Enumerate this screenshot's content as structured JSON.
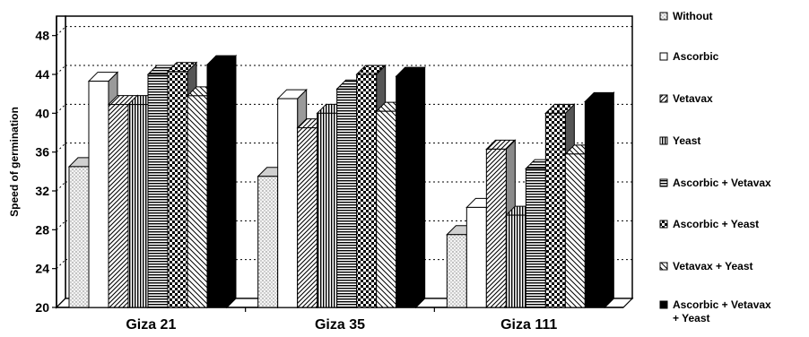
{
  "chart_data": {
    "type": "bar",
    "title": "",
    "xlabel": "",
    "ylabel": "Speed of germination",
    "ylim": [
      20,
      50
    ],
    "yticks": [
      20,
      24,
      28,
      32,
      36,
      40,
      44,
      48
    ],
    "grid": "horizontal dotted",
    "legend_position": "right",
    "categories": [
      "Giza 21",
      "Giza 35",
      "Giza 111"
    ],
    "series": [
      {
        "name": "Without",
        "pattern": "dots",
        "values": [
          34.5,
          33.5,
          27.5
        ]
      },
      {
        "name": "Ascorbic",
        "pattern": "white",
        "values": [
          43.3,
          41.5,
          30.3
        ]
      },
      {
        "name": "Vetavax",
        "pattern": "diagonal",
        "values": [
          40.9,
          38.5,
          36.3
        ]
      },
      {
        "name": "Yeast",
        "pattern": "vertical",
        "values": [
          40.9,
          40.0,
          29.5
        ]
      },
      {
        "name": "Ascorbic + Vetavax",
        "pattern": "horizontal",
        "values": [
          44.0,
          42.5,
          34.3
        ]
      },
      {
        "name": "Ascorbic + Yeast",
        "pattern": "checker",
        "values": [
          44.3,
          44.0,
          40.0
        ]
      },
      {
        "name": "Vetavax + Yeast",
        "pattern": "diagonal-wide",
        "values": [
          41.8,
          40.2,
          35.8
        ]
      },
      {
        "name": "Ascorbic + Vetavax + Yeast",
        "pattern": "black",
        "values": [
          45.0,
          43.8,
          41.2
        ]
      }
    ],
    "legend_lines": [
      [
        "Without"
      ],
      [
        "Ascorbic"
      ],
      [
        "Vetavax"
      ],
      [
        "Yeast"
      ],
      [
        "Ascorbic + Vetavax"
      ],
      [
        "Ascorbic + Yeast"
      ],
      [
        "Vetavax + Yeast"
      ],
      [
        "Ascorbic + Vetavax",
        "+ Yeast"
      ]
    ]
  }
}
